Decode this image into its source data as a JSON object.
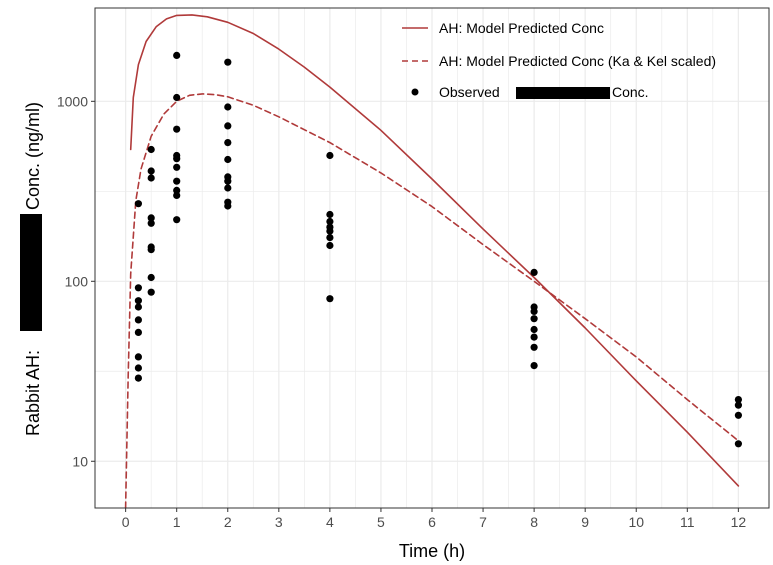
{
  "chart_data": {
    "type": "line",
    "xlabel": "Time (h)",
    "ylabel_parts": [
      "Rabbit AH:",
      "Conc. (ng/ml)"
    ],
    "x_scale": "linear",
    "y_scale": "log",
    "xlim": [
      -0.6,
      12.6
    ],
    "ylim": [
      5.5,
      3300
    ],
    "x_ticks": [
      0,
      1,
      2,
      3,
      4,
      5,
      6,
      7,
      8,
      9,
      10,
      11,
      12
    ],
    "y_ticks": [
      10,
      100,
      1000
    ],
    "y_tick_labels": [
      "10",
      "100",
      "1000"
    ],
    "grid": true,
    "legend_position": "top-right",
    "colors": {
      "model": "#b03a3a",
      "observed": "#000000",
      "grid": "#ebebeb",
      "redaction": "#000000"
    },
    "series": [
      {
        "name": "AH: Model Predicted Conc",
        "style": "solid",
        "x": [
          0.1,
          0.15,
          0.25,
          0.4,
          0.6,
          0.8,
          1.0,
          1.3,
          1.6,
          2.0,
          2.5,
          3.0,
          3.5,
          4.0,
          5.0,
          6.0,
          7.0,
          8.0,
          9.0,
          10.0,
          11.0,
          12.0
        ],
        "y": [
          540,
          1050,
          1600,
          2150,
          2600,
          2870,
          3000,
          3020,
          2950,
          2750,
          2380,
          1950,
          1550,
          1200,
          690,
          370,
          195,
          105,
          55,
          28,
          14.5,
          7.3
        ]
      },
      {
        "name": "AH: Model Predicted Conc (Ka & Kel scaled)",
        "style": "dashed",
        "x": [
          0.0,
          0.05,
          0.1,
          0.2,
          0.3,
          0.5,
          0.75,
          1.0,
          1.25,
          1.5,
          1.75,
          2.0,
          2.5,
          3.0,
          4.0,
          5.0,
          6.0,
          7.0,
          8.0,
          9.0,
          10.0,
          11.0,
          12.0
        ],
        "y": [
          5.5,
          30,
          110,
          280,
          420,
          640,
          850,
          1000,
          1080,
          1100,
          1090,
          1060,
          950,
          820,
          590,
          400,
          260,
          160,
          100,
          62,
          38,
          22,
          13
        ]
      }
    ],
    "observed": {
      "name_prefix": "Observed",
      "name_suffix": "Conc.",
      "points": [
        {
          "x": 0.25,
          "y": 270
        },
        {
          "x": 0.25,
          "y": 92
        },
        {
          "x": 0.25,
          "y": 78
        },
        {
          "x": 0.25,
          "y": 72
        },
        {
          "x": 0.25,
          "y": 61
        },
        {
          "x": 0.25,
          "y": 52
        },
        {
          "x": 0.25,
          "y": 38
        },
        {
          "x": 0.25,
          "y": 33
        },
        {
          "x": 0.25,
          "y": 29
        },
        {
          "x": 0.5,
          "y": 540
        },
        {
          "x": 0.5,
          "y": 410
        },
        {
          "x": 0.5,
          "y": 375
        },
        {
          "x": 0.5,
          "y": 225
        },
        {
          "x": 0.5,
          "y": 210
        },
        {
          "x": 0.5,
          "y": 155
        },
        {
          "x": 0.5,
          "y": 150
        },
        {
          "x": 0.5,
          "y": 105
        },
        {
          "x": 0.5,
          "y": 87
        },
        {
          "x": 1.0,
          "y": 1800
        },
        {
          "x": 1.0,
          "y": 1050
        },
        {
          "x": 1.0,
          "y": 700
        },
        {
          "x": 1.0,
          "y": 500
        },
        {
          "x": 1.0,
          "y": 480
        },
        {
          "x": 1.0,
          "y": 430
        },
        {
          "x": 1.0,
          "y": 360
        },
        {
          "x": 1.0,
          "y": 320
        },
        {
          "x": 1.0,
          "y": 300
        },
        {
          "x": 1.0,
          "y": 220
        },
        {
          "x": 2.0,
          "y": 1650
        },
        {
          "x": 2.0,
          "y": 930
        },
        {
          "x": 2.0,
          "y": 730
        },
        {
          "x": 2.0,
          "y": 590
        },
        {
          "x": 2.0,
          "y": 475
        },
        {
          "x": 2.0,
          "y": 380
        },
        {
          "x": 2.0,
          "y": 360
        },
        {
          "x": 2.0,
          "y": 330
        },
        {
          "x": 2.0,
          "y": 275
        },
        {
          "x": 2.0,
          "y": 262
        },
        {
          "x": 4.0,
          "y": 500
        },
        {
          "x": 4.0,
          "y": 235
        },
        {
          "x": 4.0,
          "y": 215
        },
        {
          "x": 4.0,
          "y": 200
        },
        {
          "x": 4.0,
          "y": 190
        },
        {
          "x": 4.0,
          "y": 175
        },
        {
          "x": 4.0,
          "y": 158
        },
        {
          "x": 4.0,
          "y": 80
        },
        {
          "x": 8.0,
          "y": 112
        },
        {
          "x": 8.0,
          "y": 72
        },
        {
          "x": 8.0,
          "y": 68
        },
        {
          "x": 8.0,
          "y": 62
        },
        {
          "x": 8.0,
          "y": 54
        },
        {
          "x": 8.0,
          "y": 49
        },
        {
          "x": 8.0,
          "y": 43
        },
        {
          "x": 8.0,
          "y": 34
        },
        {
          "x": 12.0,
          "y": 22
        },
        {
          "x": 12.0,
          "y": 20.5
        },
        {
          "x": 12.0,
          "y": 18
        },
        {
          "x": 12.0,
          "y": 12.5
        }
      ]
    }
  }
}
